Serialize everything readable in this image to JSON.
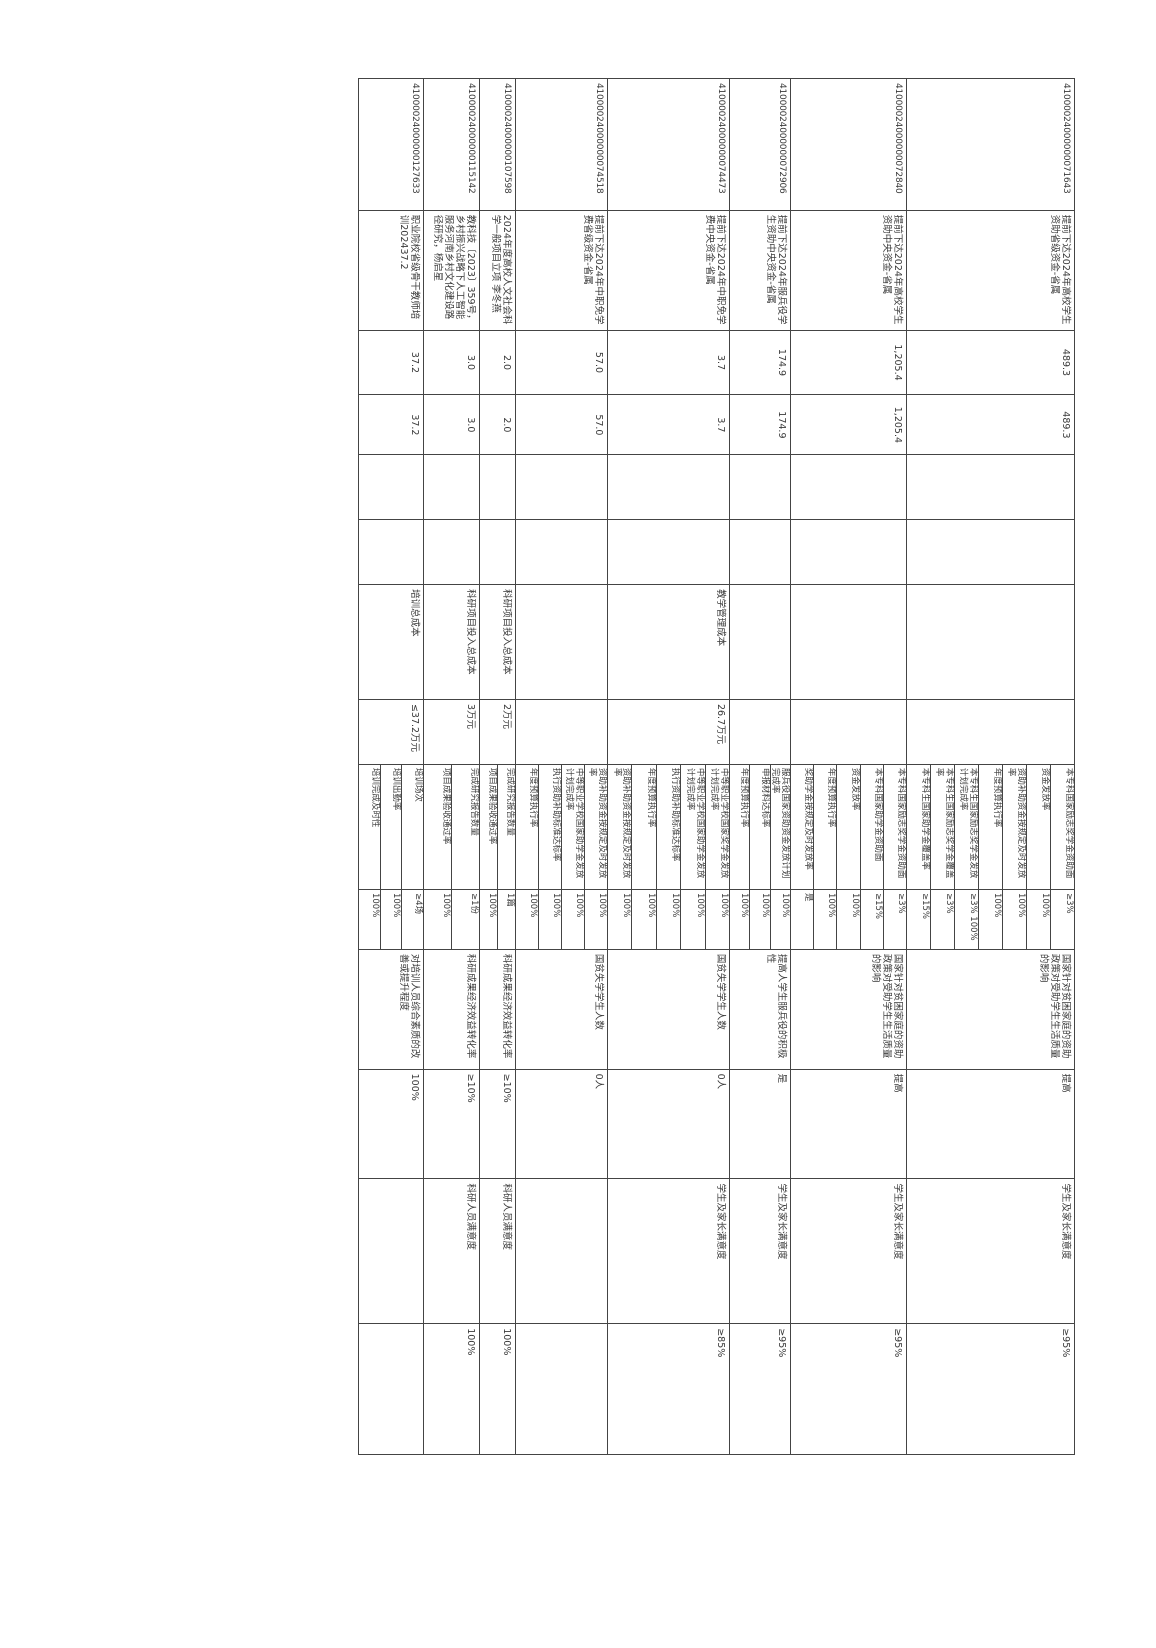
{
  "rows": [
    {
      "code": "41000024000000071643",
      "name": "提前下达2024年高校学生资助省级资金-省属",
      "amount1": "489.3",
      "amount2": "489.3",
      "cost_name": "",
      "cost_value": "",
      "outputs": [
        {
          "name": "本专科国家励志奖学金资助面",
          "value": "≥3%"
        },
        {
          "name": "资金发放率",
          "value": "100%"
        },
        {
          "name": "资助补助资金按规定及时发放率",
          "value": "100%"
        },
        {
          "name": "年度预算执行率",
          "value": "100%"
        },
        {
          "name": "本专科生国家励志奖学金发放计划完成率",
          "value": "≥3%  100%"
        },
        {
          "name": "本专科生国家励志奖学金覆盖率",
          "value": "≥3%"
        },
        {
          "name": "本专科生国家助学金覆盖率",
          "value": "≥15%"
        }
      ],
      "effect_name": "国家针对贫困家庭的资助政策对受助学生生活质量的影响",
      "effect_value": "提高",
      "satisfaction_name": "学生及家长满意度",
      "satisfaction_value": "≥95%"
    },
    {
      "code": "41000024000000072840",
      "name": "提前下达2024年高校学生资助中央资金-省属",
      "amount1": "1,205.4",
      "amount2": "1,205.4",
      "cost_name": "",
      "cost_value": "",
      "outputs": [
        {
          "name": "本专科国家励志奖学金资助面",
          "value": "≥3%"
        },
        {
          "name": "本专科国家助学金资助面",
          "value": "≥15%"
        },
        {
          "name": "资金发放率",
          "value": "100%"
        },
        {
          "name": "年度预算执行率",
          "value": "100%"
        },
        {
          "name": "奖助学金按规定及时发放率",
          "value": "是"
        }
      ],
      "effect_name": "国家针对贫困家庭的资助政策对受助学生生活质量的影响",
      "effect_value": "提高",
      "satisfaction_name": "学生及家长满意度",
      "satisfaction_value": "≥95%"
    },
    {
      "code": "41000024000000072906",
      "name": "提前下达2024年服兵役学生资助中央资金-省属",
      "amount1": "174.9",
      "amount2": "174.9",
      "cost_name": "",
      "cost_value": "",
      "outputs": [
        {
          "name": "服兵役国家资助资金发放计划完成率",
          "value": "100%"
        },
        {
          "name": "申报材料达标率",
          "value": "100%"
        },
        {
          "name": "年度预算执行率",
          "value": "100%"
        }
      ],
      "effect_name": "提高人学生服兵役的积极性",
      "effect_value": "是",
      "satisfaction_name": "学生及家长满意度",
      "satisfaction_value": "≥95%"
    },
    {
      "code": "41000024000000074473",
      "name": "提前下达2024年中职免学费中央资金-省属",
      "amount1": "3.7",
      "amount2": "3.7",
      "cost_name": "教学管理成本",
      "cost_value": "26.7万元",
      "outputs": [
        {
          "name": "中等职业学校国家奖学金发放计划完成率",
          "value": "100%"
        },
        {
          "name": "中等职业学校国家助学金发放计划完成率",
          "value": "100%"
        },
        {
          "name": "执行资助补助标准达标率",
          "value": "100%"
        },
        {
          "name": "年度预算执行率",
          "value": "100%"
        },
        {
          "name": "资助补助资金按规定及时发放率",
          "value": "100%"
        }
      ],
      "effect_name": "国贫失学学生人数",
      "effect_value": "0人",
      "satisfaction_name": "学生及家长满意度",
      "satisfaction_value": "≥85%"
    },
    {
      "code": "41000024000000074518",
      "name": "提前下达2024年中职免学费省级资金-省属",
      "amount1": "57.0",
      "amount2": "57.0",
      "cost_name": "",
      "cost_value": "",
      "outputs": [
        {
          "name": "资助补助资金按规定及时发放率",
          "value": "100%"
        },
        {
          "name": "中等职业学校国家助学金发放计划完成率",
          "value": "100%"
        },
        {
          "name": "执行资助补助标准达标率",
          "value": "100%"
        },
        {
          "name": "年度预算执行率",
          "value": "100%"
        }
      ],
      "effect_name": "国贫失学学生人数",
      "effect_value": "0人",
      "satisfaction_name": "",
      "satisfaction_value": ""
    },
    {
      "code": "41000024000000107598",
      "name": "2024年度高校人文社会科学一般项目立项 李冬燕",
      "amount1": "2.0",
      "amount2": "2.0",
      "cost_name": "科研项目投入总成本",
      "cost_value": "2万元",
      "outputs": [
        {
          "name": "完成研究报告数量",
          "value": "1篇"
        },
        {
          "name": "项目成果验收通过率",
          "value": "100%"
        }
      ],
      "effect_name": "科研成果经济效益转化率",
      "effect_value": "≥10%",
      "satisfaction_name": "科研人员满意度",
      "satisfaction_value": "100%"
    },
    {
      "code": "41000024000000115142",
      "name": "教科技〔2023〕359号，乡村振兴战略下人工智能服务河南乡村文化建设路径研究，杨启星",
      "amount1": "3.0",
      "amount2": "3.0",
      "cost_name": "科研项目投入总成本",
      "cost_value": "3万元",
      "outputs": [
        {
          "name": "完成研究报告数量",
          "value": "≥1份"
        },
        {
          "name": "项目成果验收通过率",
          "value": "100%"
        }
      ],
      "effect_name": "科研成果经济效益转化率",
      "effect_value": "≥10%",
      "satisfaction_name": "科研人员满意度",
      "satisfaction_value": "100%"
    },
    {
      "code": "41000024000000127633",
      "name": "职业院校省级骨干教师培训202437.2",
      "amount1": "37.2",
      "amount2": "37.2",
      "cost_name": "培训总成本",
      "cost_value": "≤37.2万元",
      "outputs": [
        {
          "name": "培训场次",
          "value": "≥4场"
        },
        {
          "name": "培训出勤率",
          "value": "100%"
        },
        {
          "name": "培训完成及时性",
          "value": "100%"
        }
      ],
      "effect_name": "对培训人员综合素质的改善或提升程度",
      "effect_value": "100%",
      "satisfaction_name": "",
      "satisfaction_value": ""
    }
  ]
}
